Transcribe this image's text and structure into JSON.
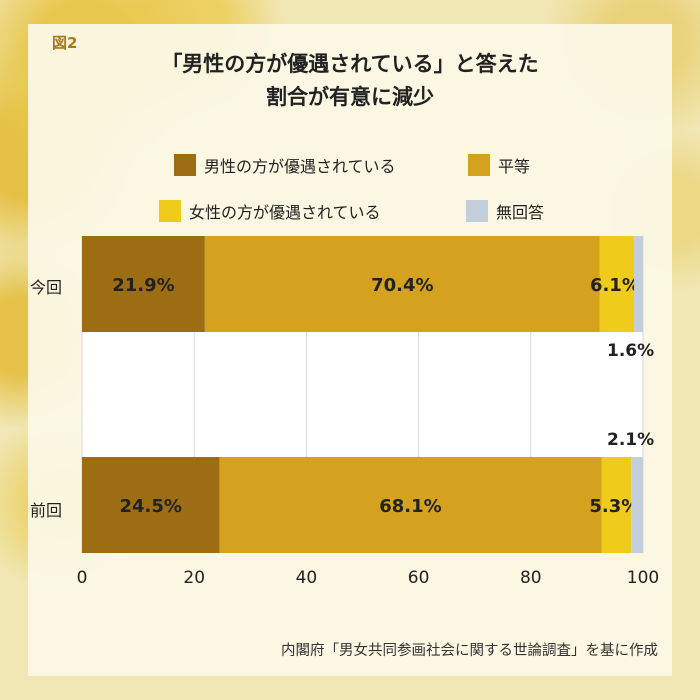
{
  "figure_label": "図2",
  "title_lines": [
    "「男性の方が優遇されている」と答えた",
    "割合が有意に減少"
  ],
  "source": "内閣府「男女共同参画社会に関する世論調査」を基に作成",
  "chart_data": {
    "type": "bar",
    "orientation": "horizontal",
    "stacked": true,
    "categories": [
      "今回",
      "前回"
    ],
    "series": [
      {
        "name": "男性の方が優遇されている",
        "color": "#9c6d12",
        "values": [
          21.9,
          24.5
        ],
        "labels": [
          "21.9%",
          "24.5%"
        ]
      },
      {
        "name": "平等",
        "color": "#d4a21e",
        "values": [
          70.4,
          68.1
        ],
        "labels": [
          "70.4%",
          "68.1%"
        ]
      },
      {
        "name": "女性の方が優遇されている",
        "color": "#efcb1c",
        "values": [
          6.1,
          5.3
        ],
        "labels": [
          "6.1%",
          "5.3%"
        ]
      },
      {
        "name": "無回答",
        "color": "#c3cedb",
        "values": [
          1.6,
          2.1
        ],
        "labels": [
          "1.6%",
          "2.1%"
        ]
      }
    ],
    "xlim": [
      0,
      100
    ],
    "xticks": [
      "0",
      "20",
      "40",
      "60",
      "80",
      "100"
    ],
    "grid": true,
    "legend_position": "top"
  }
}
